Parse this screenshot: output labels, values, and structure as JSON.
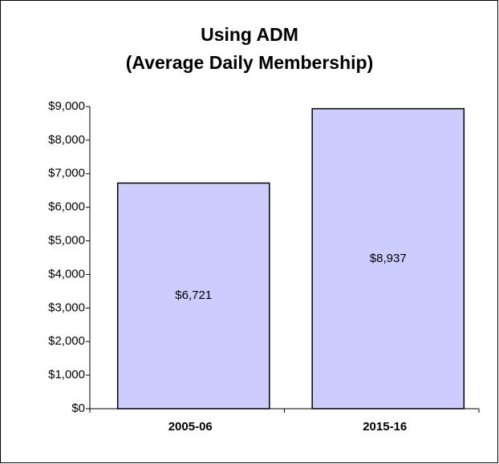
{
  "chart_data": {
    "type": "bar",
    "title": "Using ADM",
    "subtitle": "(Average Daily Membership)",
    "categories": [
      "2005-06",
      "2015-16"
    ],
    "values": [
      6721,
      8937
    ],
    "value_labels": [
      "$6,721",
      "$8,937"
    ],
    "color": "#ccccff",
    "ylim": [
      0,
      9000
    ],
    "yticks": [
      {
        "value": 0,
        "label": "$0"
      },
      {
        "value": 1000,
        "label": "$1,000"
      },
      {
        "value": 2000,
        "label": "$2,000"
      },
      {
        "value": 3000,
        "label": "$3,000"
      },
      {
        "value": 4000,
        "label": "$4,000"
      },
      {
        "value": 5000,
        "label": "$5,000"
      },
      {
        "value": 6000,
        "label": "$6,000"
      },
      {
        "value": 7000,
        "label": "$7,000"
      },
      {
        "value": 8000,
        "label": "$8,000"
      },
      {
        "value": 9000,
        "label": "$9,000"
      }
    ],
    "grid": false
  }
}
